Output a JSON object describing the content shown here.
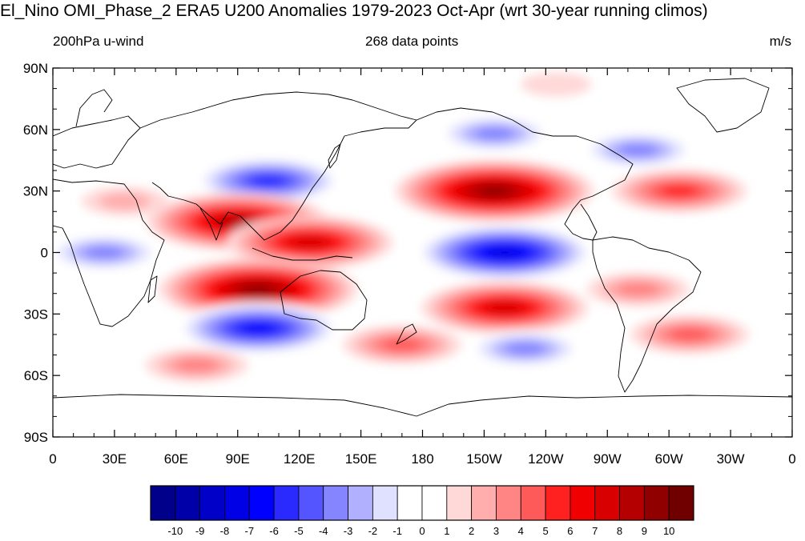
{
  "title": "El_Nino OMI_Phase_2 ERA5 U200 Anomalies 1979-2023 Oct-Apr (wrt 30-year running climos)",
  "subtitle_left": "200hPa u-wind",
  "subtitle_center": "268 data points",
  "subtitle_right": "m/s",
  "lat_ticks": [
    "90N",
    "60N",
    "30N",
    "0",
    "30S",
    "60S",
    "90S"
  ],
  "lon_ticks": [
    "0",
    "30E",
    "60E",
    "90E",
    "120E",
    "150E",
    "180",
    "150W",
    "120W",
    "90W",
    "60W",
    "30W",
    "0"
  ],
  "colorbar": {
    "labels": [
      "-10",
      "-9",
      "-8",
      "-7",
      "-6",
      "-5",
      "-4",
      "-3",
      "-2",
      "-1",
      "0",
      "1",
      "2",
      "3",
      "4",
      "5",
      "6",
      "7",
      "8",
      "9",
      "10"
    ],
    "colors": [
      "#00008a",
      "#0000a8",
      "#0000c8",
      "#0000e6",
      "#0000ff",
      "#2a2aff",
      "#5555ff",
      "#8585ff",
      "#b0b0ff",
      "#e0e0ff",
      "#ffffff",
      "#ffffff",
      "#ffd8d8",
      "#ffadad",
      "#ff8484",
      "#ff5a5a",
      "#ff2020",
      "#f00000",
      "#d80000",
      "#b40000",
      "#900000",
      "#700000"
    ]
  },
  "anomalies": [
    {
      "lon": 25,
      "lat": 0,
      "value": -4
    },
    {
      "lon": 105,
      "lat": 35,
      "value": -6
    },
    {
      "lon": 90,
      "lat": 15,
      "value": 8
    },
    {
      "lon": 125,
      "lat": 5,
      "value": 7
    },
    {
      "lon": 100,
      "lat": -18,
      "value": 9
    },
    {
      "lon": 100,
      "lat": -37,
      "value": -7
    },
    {
      "lon": 215,
      "lat": 30,
      "value": 9
    },
    {
      "lon": 220,
      "lat": 0,
      "value": -8
    },
    {
      "lon": 220,
      "lat": -27,
      "value": 7
    },
    {
      "lon": 215,
      "lat": 58,
      "value": -4
    },
    {
      "lon": 285,
      "lat": 50,
      "value": -4
    },
    {
      "lon": 305,
      "lat": 30,
      "value": 5
    },
    {
      "lon": 230,
      "lat": -47,
      "value": -4
    },
    {
      "lon": 170,
      "lat": -45,
      "value": 4
    },
    {
      "lon": 70,
      "lat": -55,
      "value": 3
    },
    {
      "lon": 35,
      "lat": 25,
      "value": 2
    },
    {
      "lon": 310,
      "lat": -40,
      "value": 4
    },
    {
      "lon": 285,
      "lat": -18,
      "value": 3
    },
    {
      "lon": 245,
      "lat": 82,
      "value": 1
    }
  ]
}
